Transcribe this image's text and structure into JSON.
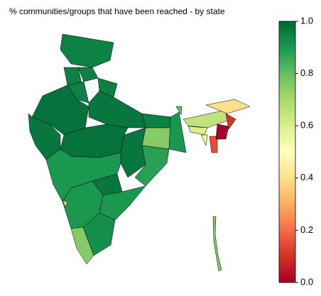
{
  "chart_data": {
    "type": "choropleth",
    "title": "% communities/groups that have been reached - by state",
    "colormap": "RdYlGn",
    "values": [
      0.95,
      0.95,
      0.95,
      0.95,
      0.95,
      0.98,
      0.97,
      0.97,
      0.98,
      0.95,
      0.75,
      0.9,
      0.97,
      0.88,
      0.9,
      0.97,
      0.9,
      0.9,
      0.35,
      0.75,
      0.92,
      0.8,
      0.65,
      0.4,
      0.1,
      0.6,
      0.55,
      0.15,
      0.0,
      0.75
    ],
    "clim": [
      0,
      1
    ],
    "cticks": [
      {
        "value": 0,
        "label": "0.0"
      },
      {
        "value": 0.2,
        "label": "0.2"
      },
      {
        "value": 0.4,
        "label": "0.4"
      },
      {
        "value": 0.6,
        "label": "0.6"
      },
      {
        "value": 0.8,
        "label": "0.8"
      },
      {
        "value": 1,
        "label": "1.0"
      }
    ]
  }
}
